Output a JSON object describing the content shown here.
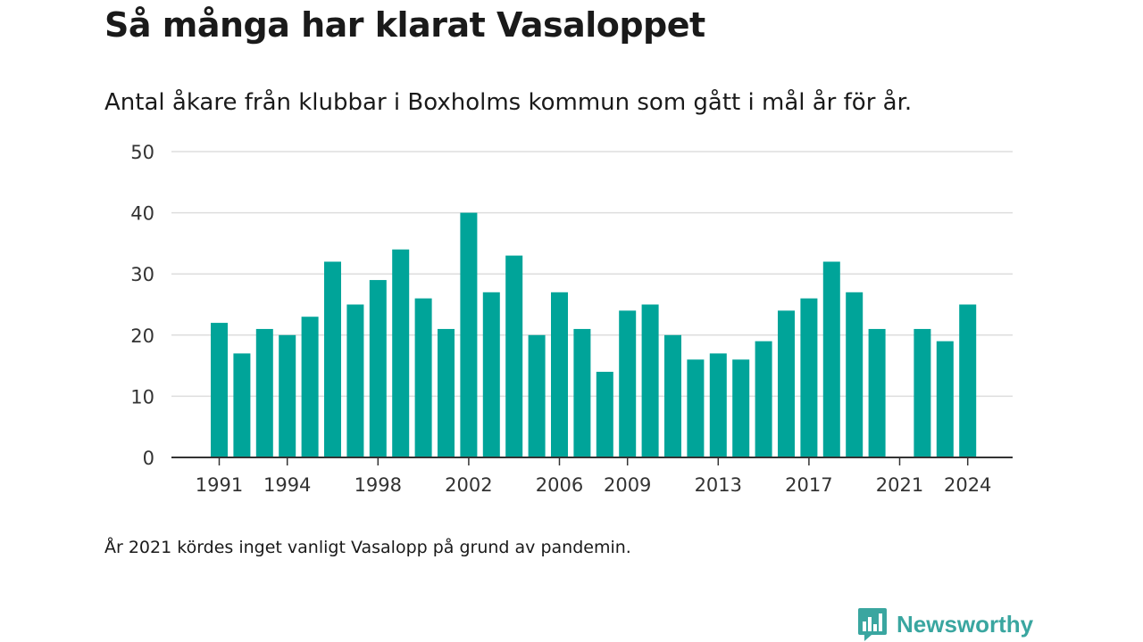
{
  "title": "Så många har klarat Vasaloppet",
  "subtitle": "Antal åkare från klubbar i Boxholms kommun som gått i mål år för år.",
  "note": "År 2021 kördes inget vanligt Vasalopp på grund av pandemin.",
  "brand": {
    "name": "Newsworthy",
    "icon": "bar-chart-bubble-icon",
    "color": "#3aa6a0"
  },
  "colors": {
    "bar": "#00a499",
    "grid": "#dddddd",
    "axis": "#333333"
  },
  "chart_data": {
    "type": "bar",
    "x": [
      1991,
      1992,
      1993,
      1994,
      1995,
      1996,
      1997,
      1998,
      1999,
      2000,
      2001,
      2002,
      2003,
      2004,
      2005,
      2006,
      2007,
      2008,
      2009,
      2010,
      2011,
      2012,
      2013,
      2014,
      2015,
      2016,
      2017,
      2018,
      2019,
      2020,
      2021,
      2022,
      2023,
      2024
    ],
    "values": [
      22,
      17,
      21,
      20,
      23,
      32,
      25,
      29,
      34,
      26,
      21,
      40,
      27,
      33,
      20,
      27,
      21,
      14,
      24,
      25,
      20,
      16,
      17,
      16,
      19,
      24,
      26,
      32,
      27,
      21,
      null,
      21,
      19,
      25
    ],
    "xticks": [
      "1991",
      "1994",
      "1998",
      "2002",
      "2006",
      "2009",
      "2013",
      "2017",
      "2021",
      "2024"
    ],
    "yticks": [
      "0",
      "10",
      "20",
      "30",
      "40",
      "50"
    ],
    "ylim": [
      0,
      50
    ],
    "xlabel": "",
    "ylabel": "",
    "grid": true
  }
}
